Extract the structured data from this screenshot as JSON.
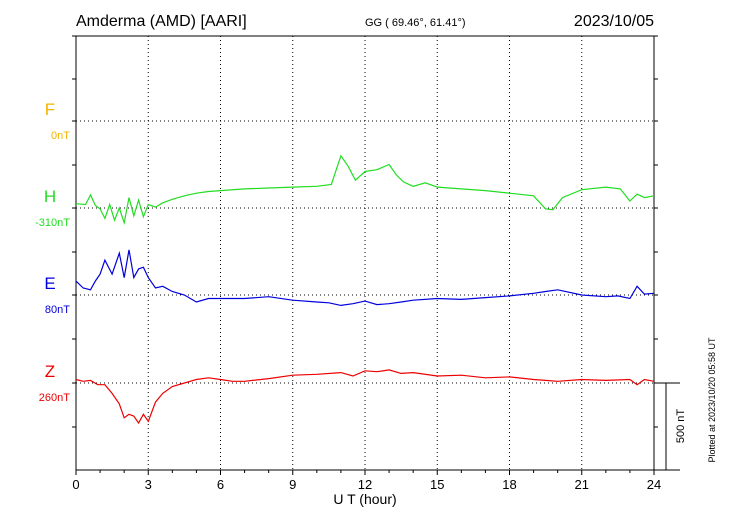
{
  "header": {
    "station": "Amderma (AMD)  [AARI]",
    "coords": "GG ( 69.46°,  61.41°)",
    "date": "2023/10/05"
  },
  "footer": {
    "plotted_note": "Plotted at 2023/10/20 05:58 UT"
  },
  "chart_data": {
    "type": "line",
    "xlabel": "U T (hour)",
    "xlim": [
      0,
      24
    ],
    "x_ticks": [
      "0",
      "3",
      "6",
      "9",
      "12",
      "15",
      "18",
      "21",
      "24"
    ],
    "grid": true,
    "scale_bar": {
      "label": "500 nT",
      "value_nT": 500
    },
    "series": [
      {
        "name": "F",
        "offset_label": "0nT",
        "color": "#f0b400",
        "x": [],
        "y": []
      },
      {
        "name": "H",
        "offset_label": "-310nT",
        "color": "#22dd22",
        "x": [
          0,
          0.4,
          0.6,
          0.8,
          1.0,
          1.2,
          1.4,
          1.6,
          1.8,
          2.0,
          2.2,
          2.4,
          2.6,
          2.8,
          3.0,
          3.3,
          3.6,
          4.0,
          4.5,
          5.0,
          5.5,
          6.0,
          7.0,
          8.0,
          9.0,
          10.0,
          10.6,
          11.0,
          11.3,
          11.6,
          12.0,
          12.5,
          13.0,
          13.3,
          13.6,
          14.0,
          14.5,
          15.0,
          16.0,
          17.0,
          18.0,
          19.0,
          19.5,
          19.8,
          20.2,
          21.0,
          22.0,
          22.6,
          23.0,
          23.3,
          23.6,
          24.0
        ],
        "y": [
          25,
          20,
          75,
          15,
          -5,
          -60,
          20,
          -70,
          0,
          -85,
          60,
          -45,
          45,
          -50,
          20,
          5,
          30,
          50,
          70,
          85,
          95,
          100,
          110,
          115,
          120,
          125,
          135,
          300,
          240,
          160,
          210,
          220,
          250,
          190,
          150,
          125,
          145,
          120,
          110,
          100,
          85,
          70,
          -5,
          -10,
          60,
          105,
          120,
          110,
          40,
          80,
          60,
          70
        ]
      },
      {
        "name": "E",
        "offset_label": "80nT",
        "color": "#0000dd",
        "x": [
          0,
          0.3,
          0.6,
          0.8,
          1.0,
          1.2,
          1.5,
          1.8,
          2.0,
          2.2,
          2.4,
          2.6,
          2.8,
          3.0,
          3.3,
          3.6,
          4.0,
          4.5,
          5.0,
          5.5,
          6.0,
          7.0,
          8.0,
          9.0,
          10.0,
          10.5,
          11.0,
          11.5,
          12.0,
          12.5,
          13.0,
          13.5,
          14.0,
          15.0,
          16.0,
          17.0,
          18.0,
          19.0,
          19.5,
          20.0,
          21.0,
          22.0,
          22.5,
          23.0,
          23.3,
          23.6,
          24.0
        ],
        "y": [
          80,
          40,
          30,
          80,
          120,
          200,
          120,
          240,
          100,
          260,
          100,
          150,
          160,
          100,
          40,
          50,
          20,
          0,
          -40,
          -20,
          -20,
          -20,
          -10,
          -30,
          -40,
          -45,
          -60,
          -50,
          -35,
          -55,
          -50,
          -40,
          -30,
          -20,
          -25,
          -15,
          -5,
          10,
          20,
          30,
          0,
          -10,
          -5,
          -20,
          50,
          5,
          10
        ]
      },
      {
        "name": "Z",
        "offset_label": "260nT",
        "color": "#ee0000",
        "x": [
          0,
          0.3,
          0.6,
          0.9,
          1.2,
          1.5,
          1.8,
          2.0,
          2.2,
          2.4,
          2.6,
          2.8,
          3.0,
          3.3,
          3.6,
          4.0,
          4.5,
          5.0,
          5.5,
          6.0,
          6.5,
          7.0,
          8.0,
          9.0,
          10.0,
          11.0,
          11.5,
          12.0,
          12.5,
          13.0,
          13.5,
          14.0,
          15.0,
          16.0,
          17.0,
          18.0,
          19.0,
          19.5,
          20.0,
          21.0,
          22.0,
          23.0,
          23.3,
          23.6,
          24.0
        ],
        "y": [
          20,
          10,
          15,
          -10,
          -10,
          -60,
          -120,
          -200,
          -180,
          -190,
          -230,
          -180,
          -220,
          -110,
          -60,
          -20,
          0,
          20,
          30,
          20,
          10,
          10,
          25,
          45,
          50,
          60,
          40,
          70,
          65,
          75,
          55,
          60,
          40,
          45,
          30,
          35,
          20,
          15,
          10,
          20,
          15,
          20,
          -10,
          20,
          10
        ]
      }
    ]
  }
}
